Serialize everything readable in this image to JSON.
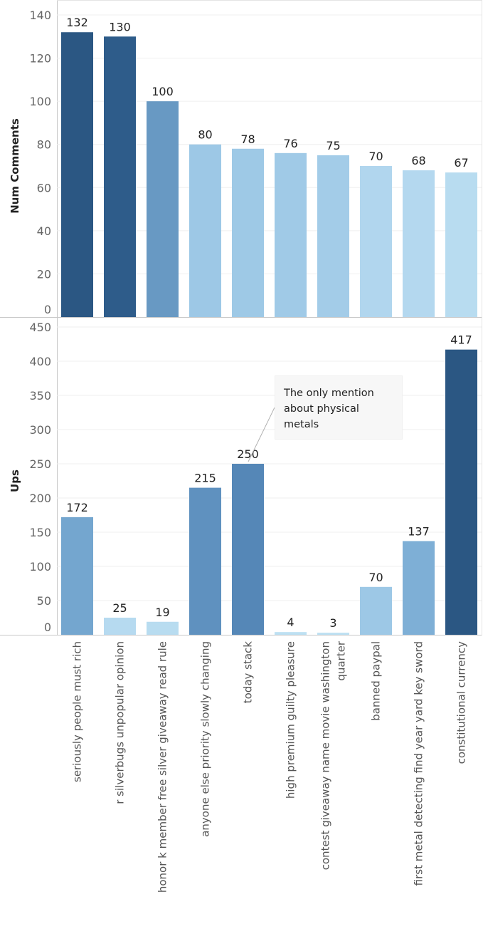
{
  "chart_data": [
    {
      "type": "bar",
      "ylabel": "Num Comments",
      "ylim": [
        0,
        145
      ],
      "yticks": [
        0,
        20,
        40,
        60,
        80,
        100,
        120,
        140
      ],
      "categories": [
        "seriously people must rich",
        "r silverbugs unpopular opinion",
        "honor k member free silver giveaway read rule",
        "anyone else priority slowly changing",
        "today stack",
        "high premium guilty pleasure",
        "contest giveaway name movie washington quarter",
        "banned paypal",
        "first metal detecting find year yard key sword",
        "constitutional currency"
      ],
      "values": [
        132,
        130,
        100,
        80,
        78,
        76,
        75,
        70,
        68,
        67
      ],
      "colors": [
        "#2b5783",
        "#2e5c8a",
        "#6899c3",
        "#9dc8e6",
        "#9ec9e6",
        "#a0cae7",
        "#a3cce8",
        "#b1d6ee",
        "#b4d8ef",
        "#b8dcf0"
      ]
    },
    {
      "type": "bar",
      "ylabel": "Ups",
      "ylim": [
        0,
        460
      ],
      "yticks": [
        0,
        50,
        100,
        150,
        200,
        250,
        300,
        350,
        400,
        450
      ],
      "categories": [
        "seriously people must rich",
        "r silverbugs unpopular opinion",
        "honor k member free silver giveaway read rule",
        "anyone else priority slowly changing",
        "today stack",
        "high premium guilty pleasure",
        "contest giveaway name movie washington quarter",
        "banned paypal",
        "first metal detecting find year yard key sword",
        "constitutional currency"
      ],
      "values": [
        172,
        25,
        19,
        215,
        250,
        4,
        3,
        70,
        137,
        417
      ],
      "colors": [
        "#74a6cf",
        "#b6daf0",
        "#b8dcf0",
        "#5f91bf",
        "#5587b7",
        "#bde0f2",
        "#bde0f2",
        "#9dc8e6",
        "#7eafd6",
        "#2b5783"
      ],
      "annotation": {
        "lines": [
          "The only mention",
          "about physical",
          "metals"
        ],
        "target_category_index": 4
      }
    }
  ],
  "x_axis": {
    "category_labels": [
      [
        "seriously people must rich"
      ],
      [
        "r silverbugs unpopular opinion"
      ],
      [
        "honor k member free silver giveaway read rule"
      ],
      [
        "anyone else priority slowly changing"
      ],
      [
        "today stack"
      ],
      [
        "high premium guilty pleasure"
      ],
      [
        "contest giveaway name movie washington",
        "quarter"
      ],
      [
        "banned paypal"
      ],
      [
        "first metal detecting find year yard key sword"
      ],
      [
        "constitutional currency"
      ]
    ]
  }
}
